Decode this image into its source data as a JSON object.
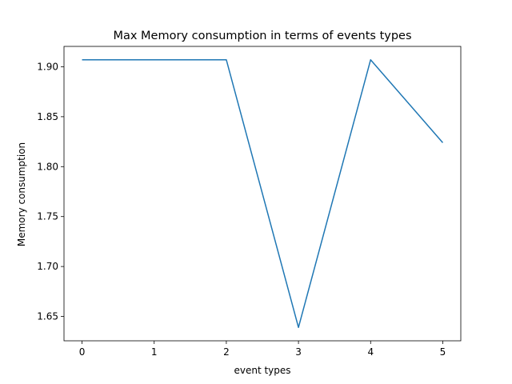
{
  "chart_data": {
    "type": "line",
    "title": "Max Memory consumption in terms of events types",
    "xlabel": "event types",
    "ylabel": "Memory consumption",
    "x": [
      0,
      1,
      2,
      3,
      4,
      5
    ],
    "series": [
      {
        "name": "",
        "values": [
          1.907,
          1.907,
          1.907,
          1.639,
          1.907,
          1.824
        ],
        "color": "#1f77b4"
      }
    ],
    "xticks": [
      0,
      1,
      2,
      3,
      4,
      5
    ],
    "xtick_labels": [
      "0",
      "1",
      "2",
      "3",
      "4",
      "5"
    ],
    "yticks": [
      1.65,
      1.7,
      1.75,
      1.8,
      1.85,
      1.9
    ],
    "ytick_labels": [
      "1.65",
      "1.70",
      "1.75",
      "1.80",
      "1.85",
      "1.90"
    ],
    "xlim": [
      -0.25,
      5.25
    ],
    "ylim": [
      1.6256,
      1.9204
    ],
    "grid": false,
    "legend": "none"
  }
}
